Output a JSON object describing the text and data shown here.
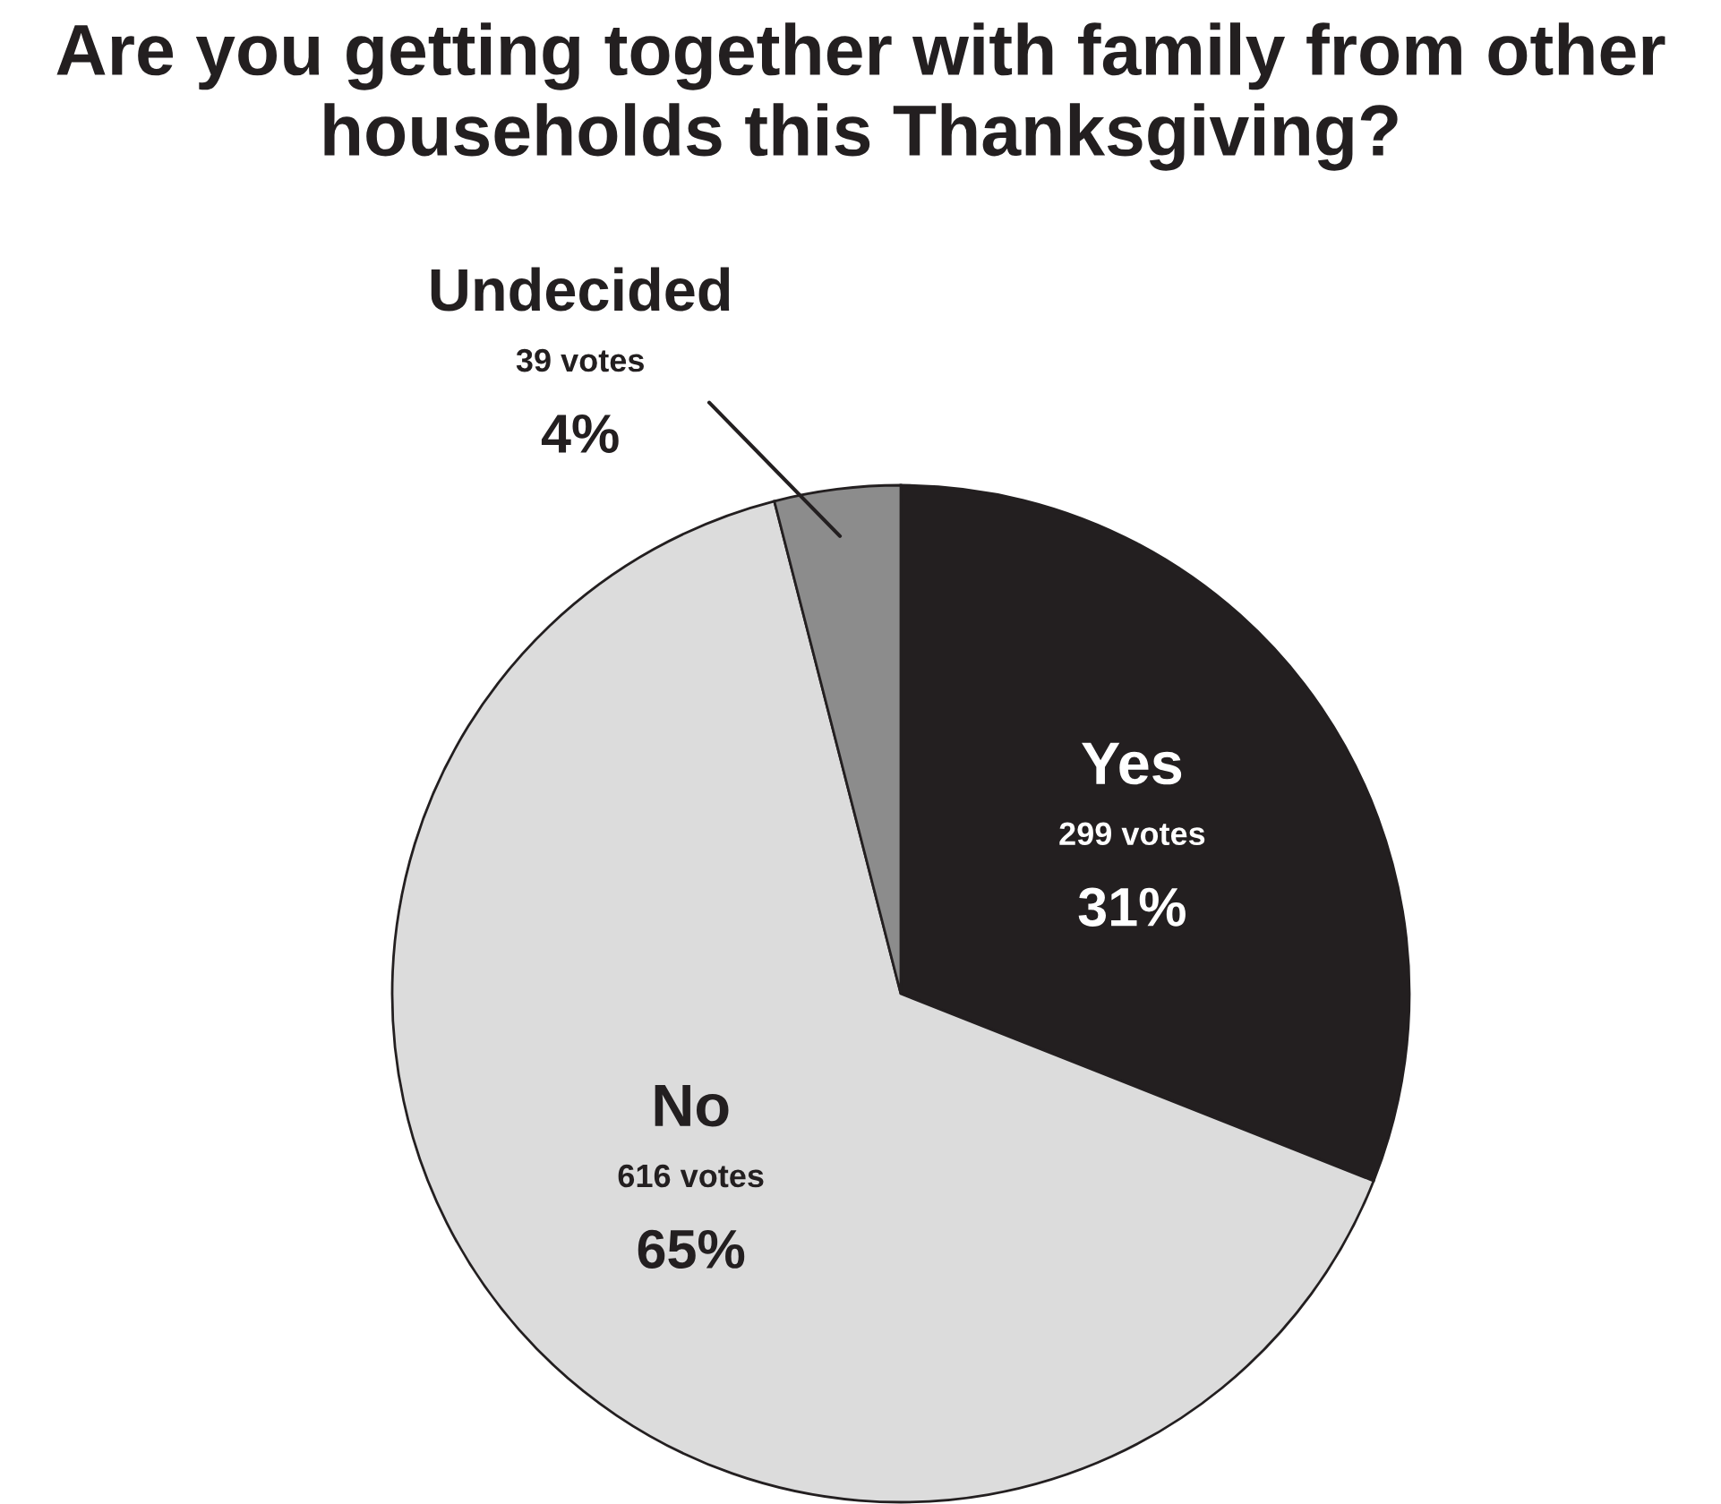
{
  "chart_data": {
    "type": "pie",
    "title": "Are you getting together with family from other households this Thanksgiving?",
    "categories": [
      "Yes",
      "No",
      "Undecided"
    ],
    "values": [
      31,
      65,
      4
    ],
    "value_labels": [
      "299 votes\n31%",
      "616 votes\n65%",
      "39 votes\n4%"
    ],
    "colors": [
      "#231f20",
      "#dcdcdc",
      "#8c8c8c"
    ],
    "legend": false
  }
}
